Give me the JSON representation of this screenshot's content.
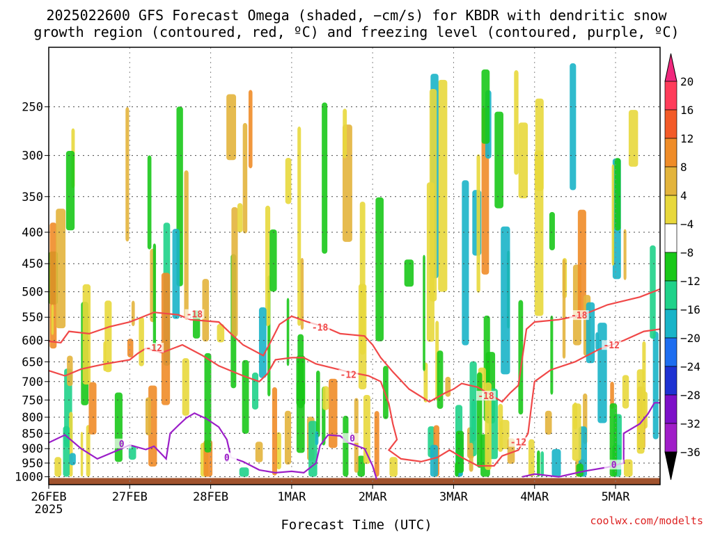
{
  "chart_data": {
    "type": "heatmap",
    "title_line1": "2025022600 GFS Forecast Omega (shaded, −cm/s) for KBDR with dendritic snow",
    "title_line2": "growth region (contoured, red, ºC) and freezing level (contoured, purple, ºC)",
    "xlabel": "Forecast Time (UTC)",
    "credit": "coolwx.com/modelts",
    "x_ticks": [
      "26FEB",
      "27FEB",
      "28FEB",
      "1MAR",
      "2MAR",
      "3MAR",
      "4MAR",
      "5MAR"
    ],
    "x_tick_year": "2025",
    "x_range_days": [
      0,
      7.55
    ],
    "y_ticks": [
      250,
      300,
      350,
      400,
      450,
      500,
      550,
      600,
      650,
      700,
      750,
      800,
      850,
      900,
      950,
      1000
    ],
    "y_range_hPa": [
      200,
      1030
    ],
    "y_scale": "log",
    "grid": true,
    "colorbar": {
      "levels": [
        20,
        16,
        12,
        8,
        4,
        -4,
        -8,
        -12,
        -16,
        -20,
        -24,
        -28,
        -32,
        -36
      ],
      "colors": [
        "#ff3c5a",
        "#f35a28",
        "#ef8c28",
        "#e3b43c",
        "#e8d83c",
        "#ffffff",
        "#19c819",
        "#1fd28a",
        "#19b4c8",
        "#1e6ef0",
        "#1e32d2",
        "#7d10c8",
        "#a01ec8",
        "#aaaaaa",
        "#000000"
      ],
      "top_arrow_color": "#f0287d",
      "bottom_arrow_color": "#000000"
    },
    "contours": [
      {
        "label": "-18",
        "color": "#f04848",
        "points": [
          [
            0,
            602
          ],
          [
            0.15,
            605
          ],
          [
            0.25,
            580
          ],
          [
            0.5,
            585
          ],
          [
            0.75,
            570
          ],
          [
            1.0,
            560
          ],
          [
            1.3,
            540
          ],
          [
            1.6,
            545
          ],
          [
            1.75,
            555
          ],
          [
            2.1,
            560
          ],
          [
            2.25,
            585
          ],
          [
            2.4,
            610
          ],
          [
            2.65,
            635
          ],
          [
            2.75,
            600
          ],
          [
            2.85,
            565
          ],
          [
            3.0,
            548
          ],
          [
            3.2,
            560
          ],
          [
            3.4,
            570
          ],
          [
            3.6,
            585
          ],
          [
            3.9,
            590
          ],
          [
            4.0,
            610
          ],
          [
            4.1,
            640
          ],
          [
            4.25,
            675
          ],
          [
            4.45,
            720
          ],
          [
            4.7,
            755
          ],
          [
            4.9,
            730
          ],
          [
            5.0,
            720
          ],
          [
            5.1,
            705
          ],
          [
            5.3,
            715
          ],
          [
            5.6,
            755
          ],
          [
            5.7,
            730
          ],
          [
            5.8,
            710
          ],
          [
            5.9,
            575
          ],
          [
            6.0,
            560
          ],
          [
            6.3,
            555
          ],
          [
            6.6,
            545
          ],
          [
            6.9,
            525
          ],
          [
            7.3,
            510
          ],
          [
            7.55,
            495
          ]
        ]
      },
      {
        "label": "-12",
        "color": "#f04848",
        "points": [
          [
            0,
            672
          ],
          [
            0.2,
            685
          ],
          [
            0.4,
            668
          ],
          [
            0.7,
            655
          ],
          [
            1.0,
            645
          ],
          [
            1.1,
            630
          ],
          [
            1.2,
            618
          ],
          [
            1.4,
            628
          ],
          [
            1.65,
            610
          ],
          [
            1.9,
            635
          ],
          [
            2.1,
            660
          ],
          [
            2.4,
            685
          ],
          [
            2.6,
            700
          ],
          [
            2.7,
            680
          ],
          [
            2.8,
            645
          ],
          [
            3.0,
            640
          ],
          [
            3.15,
            640
          ],
          [
            3.3,
            655
          ],
          [
            3.5,
            665
          ],
          [
            3.7,
            675
          ],
          [
            3.95,
            685
          ],
          [
            4.1,
            700
          ],
          [
            4.2,
            760
          ],
          [
            4.25,
            820
          ],
          [
            4.3,
            870
          ],
          [
            4.2,
            905
          ],
          [
            4.35,
            935
          ],
          [
            4.6,
            945
          ],
          [
            4.8,
            930
          ],
          [
            4.95,
            905
          ],
          [
            5.1,
            930
          ],
          [
            5.3,
            960
          ],
          [
            5.5,
            960
          ],
          [
            5.6,
            925
          ],
          [
            5.8,
            905
          ],
          [
            5.92,
            850
          ],
          [
            5.97,
            750
          ],
          [
            6.0,
            700
          ],
          [
            6.2,
            670
          ],
          [
            6.5,
            650
          ],
          [
            6.8,
            620
          ],
          [
            7.1,
            600
          ],
          [
            7.35,
            580
          ],
          [
            7.55,
            575
          ]
        ]
      },
      {
        "label": "0",
        "color": "#9b1ec8",
        "points": [
          [
            0,
            880
          ],
          [
            0.2,
            855
          ],
          [
            0.4,
            900
          ],
          [
            0.6,
            935
          ],
          [
            0.9,
            900
          ],
          [
            1.0,
            888
          ],
          [
            1.2,
            903
          ],
          [
            1.3,
            892
          ],
          [
            1.45,
            935
          ],
          [
            1.5,
            850
          ],
          [
            1.6,
            825
          ],
          [
            1.7,
            802
          ],
          [
            1.8,
            788
          ],
          [
            1.95,
            805
          ],
          [
            2.1,
            830
          ],
          [
            2.2,
            870
          ],
          [
            2.25,
            930
          ],
          [
            2.4,
            945
          ],
          [
            2.6,
            975
          ],
          [
            2.8,
            985
          ],
          [
            3.0,
            980
          ],
          [
            3.15,
            985
          ],
          [
            3.3,
            950
          ],
          [
            3.35,
            890
          ],
          [
            3.45,
            855
          ],
          [
            3.6,
            858
          ],
          [
            3.7,
            880
          ],
          [
            3.8,
            890
          ],
          [
            3.9,
            900
          ],
          [
            4.0,
            960
          ],
          [
            4.05,
            1010
          ]
        ]
      },
      {
        "label": "0",
        "color": "#9b1ec8",
        "points": [
          [
            5.85,
            1000
          ],
          [
            6.0,
            990
          ],
          [
            6.3,
            1000
          ],
          [
            6.6,
            980
          ],
          [
            6.9,
            965
          ],
          [
            7.1,
            950
          ],
          [
            7.1,
            850
          ],
          [
            7.3,
            820
          ],
          [
            7.4,
            790
          ],
          [
            7.48,
            758
          ],
          [
            7.55,
            758
          ]
        ]
      }
    ],
    "contour_labels": [
      {
        "text": "-18",
        "x": 1.8,
        "y": 545,
        "color": "#f04848"
      },
      {
        "text": "-12",
        "x": 1.3,
        "y": 618,
        "color": "#f04848"
      },
      {
        "text": "-18",
        "x": 3.35,
        "y": 572,
        "color": "#f04848"
      },
      {
        "text": "-12",
        "x": 3.7,
        "y": 683,
        "color": "#f04848"
      },
      {
        "text": "-18",
        "x": 5.4,
        "y": 740,
        "color": "#f04848"
      },
      {
        "text": "-12",
        "x": 5.8,
        "y": 880,
        "color": "#f04848"
      },
      {
        "text": "-18",
        "x": 6.55,
        "y": 547,
        "color": "#f04848"
      },
      {
        "text": "-12",
        "x": 6.95,
        "y": 612,
        "color": "#f04848"
      },
      {
        "text": "0",
        "x": 0.9,
        "y": 885,
        "color": "#9b1ec8"
      },
      {
        "text": "0",
        "x": 2.2,
        "y": 935,
        "color": "#9b1ec8"
      },
      {
        "text": "0",
        "x": 3.75,
        "y": 867,
        "color": "#9b1ec8"
      },
      {
        "text": "0",
        "x": 2.2,
        "y": 932,
        "color": "#9b1ec8"
      },
      {
        "text": "0",
        "x": 6.98,
        "y": 958,
        "color": "#9b1ec8"
      }
    ]
  }
}
